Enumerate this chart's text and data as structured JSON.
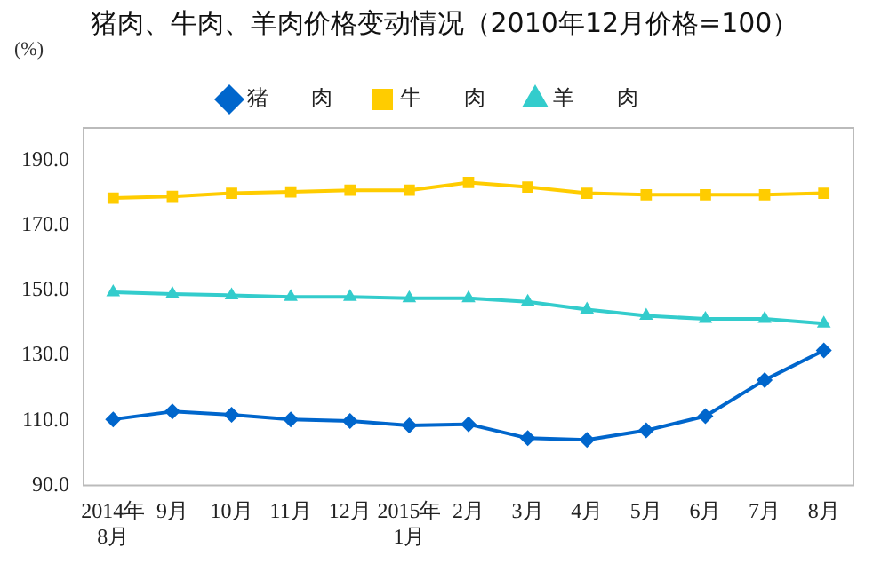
{
  "chart_data": {
    "type": "line",
    "title": "猪肉、牛肉、羊肉价格变动情况（2010年12月价格=100）",
    "ylabel": "(%)",
    "categories": [
      "2014年\n8月",
      "9月",
      "10月",
      "11月",
      "12月",
      "2015年\n1月",
      "2月",
      "3月",
      "4月",
      "5月",
      "6月",
      "7月",
      "8月"
    ],
    "series": [
      {
        "name": "猪　　肉",
        "color": "#0066cc",
        "marker": "diamond",
        "values": [
          110.3,
          112.7,
          111.7,
          110.3,
          109.8,
          108.4,
          108.8,
          104.5,
          104.0,
          106.9,
          111.3,
          122.4,
          131.5
        ]
      },
      {
        "name": "牛　　肉",
        "color": "#ffcc00",
        "marker": "square",
        "values": [
          178.4,
          178.9,
          179.9,
          180.3,
          180.8,
          180.8,
          183.2,
          181.8,
          179.9,
          179.4,
          179.4,
          179.4,
          179.9
        ]
      },
      {
        "name": "羊　　肉",
        "color": "#33cccc",
        "marker": "triangle",
        "values": [
          149.4,
          148.9,
          148.5,
          148.0,
          148.0,
          147.6,
          147.6,
          146.5,
          144.1,
          142.2,
          141.2,
          141.2,
          139.8
        ]
      }
    ],
    "ylim": [
      90,
      200
    ],
    "yticks": [
      {
        "value": 90,
        "label": "90.0"
      },
      {
        "value": 110,
        "label": "110.0"
      },
      {
        "value": 130,
        "label": "130.0"
      },
      {
        "value": 150,
        "label": "150.0"
      },
      {
        "value": 170,
        "label": "170.0"
      },
      {
        "value": 190,
        "label": "190.0"
      }
    ],
    "grid": false,
    "legend": "top",
    "line_style": "solid"
  }
}
